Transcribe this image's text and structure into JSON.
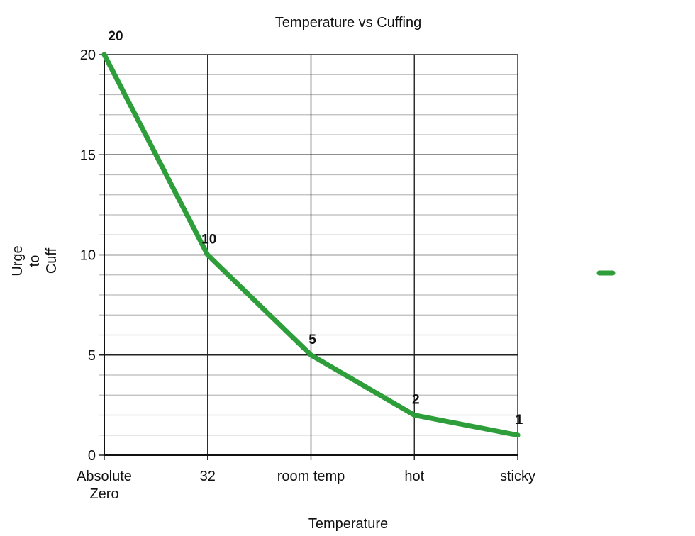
{
  "chart_data": {
    "type": "line",
    "title": "Temperature vs Cuffing",
    "xlabel": "Temperature",
    "ylabel": [
      "Urge",
      "to",
      "Cuff"
    ],
    "categories": [
      [
        "Absolute",
        "Zero"
      ],
      [
        "32"
      ],
      [
        "room temp"
      ],
      [
        "hot"
      ],
      [
        "sticky"
      ]
    ],
    "series": [
      {
        "name": "",
        "values": [
          20,
          10,
          5,
          2,
          1
        ],
        "data_labels": [
          "20",
          "10",
          "5",
          "2",
          "1"
        ],
        "color": "#2e9e3a"
      }
    ],
    "ylim": [
      0,
      20
    ],
    "y_major_ticks": [
      0,
      5,
      10,
      15,
      20
    ],
    "y_minor_step": 1,
    "grid": true,
    "legend": "right"
  }
}
